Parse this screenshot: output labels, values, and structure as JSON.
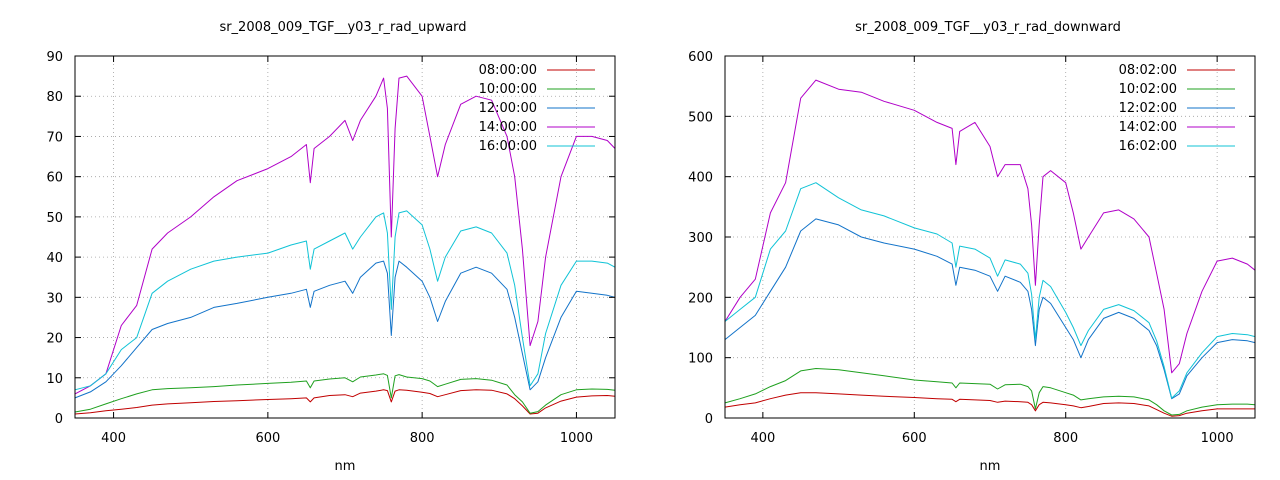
{
  "colors": {
    "s1": "#c00000",
    "s2": "#1fa01f",
    "s3": "#1273c9",
    "s4": "#b000c8",
    "s5": "#10c3d6"
  },
  "chart_data": [
    {
      "type": "line",
      "title": "sr_2008_009_TGF__y03_r_rad_upward",
      "xlabel": "nm",
      "ylabel": "",
      "xlim": [
        350,
        1050
      ],
      "ylim": [
        0,
        90
      ],
      "xticks": [
        400,
        600,
        800,
        1000
      ],
      "yticks": [
        0,
        10,
        20,
        30,
        40,
        50,
        60,
        70,
        80,
        90
      ],
      "grid": true,
      "legend": "top-right",
      "x": [
        350,
        370,
        390,
        410,
        430,
        450,
        470,
        500,
        530,
        560,
        600,
        630,
        650,
        655,
        660,
        680,
        700,
        710,
        720,
        740,
        750,
        755,
        760,
        765,
        770,
        780,
        800,
        810,
        820,
        830,
        850,
        870,
        890,
        910,
        920,
        930,
        940,
        950,
        960,
        980,
        1000,
        1020,
        1040,
        1050
      ],
      "series": [
        {
          "name": "08:00:00",
          "values": [
            1.0,
            1.3,
            1.8,
            2.2,
            2.6,
            3.2,
            3.5,
            3.8,
            4.1,
            4.3,
            4.6,
            4.8,
            5.0,
            4.0,
            5.0,
            5.6,
            5.8,
            5.3,
            6.2,
            6.7,
            7.0,
            6.8,
            4.0,
            6.7,
            7.0,
            6.9,
            6.4,
            6.1,
            5.3,
            5.8,
            6.8,
            7.0,
            6.9,
            6.0,
            4.8,
            3.0,
            1.0,
            1.2,
            2.5,
            4.2,
            5.2,
            5.5,
            5.6,
            5.4
          ]
        },
        {
          "name": "10:00:00",
          "values": [
            1.5,
            2.2,
            3.5,
            4.8,
            6.0,
            7.0,
            7.3,
            7.5,
            7.8,
            8.2,
            8.6,
            8.9,
            9.2,
            7.5,
            9.2,
            9.7,
            10.0,
            9.0,
            10.2,
            10.7,
            11.0,
            10.6,
            5.0,
            10.5,
            10.8,
            10.2,
            9.8,
            9.2,
            7.8,
            8.4,
            9.6,
            9.8,
            9.4,
            8.2,
            5.8,
            4.0,
            1.2,
            1.6,
            3.2,
            5.8,
            7.0,
            7.2,
            7.1,
            6.9
          ]
        },
        {
          "name": "12:00:00",
          "values": [
            5.0,
            6.5,
            9.0,
            13.0,
            17.5,
            22.0,
            23.5,
            25.0,
            27.5,
            28.5,
            30.0,
            31.0,
            32.0,
            27.5,
            31.5,
            33.0,
            34.0,
            31.0,
            35.0,
            38.5,
            39.0,
            36.0,
            20.5,
            35.0,
            39.0,
            37.5,
            34.0,
            30.0,
            24.0,
            29.0,
            36.0,
            37.5,
            36.0,
            32.0,
            25.0,
            16.0,
            7.0,
            9.0,
            15.0,
            25.0,
            31.5,
            31.0,
            30.5,
            30.0
          ]
        },
        {
          "name": "14:00:00",
          "values": [
            6.0,
            8.0,
            11.0,
            23.0,
            28.0,
            42.0,
            46.0,
            50.0,
            55.0,
            59.0,
            62.0,
            65.0,
            68.0,
            58.5,
            67.0,
            70.0,
            74.0,
            69.0,
            74.0,
            80.0,
            84.5,
            77.0,
            45.0,
            72.0,
            84.5,
            85.0,
            80.0,
            70.0,
            60.0,
            68.0,
            78.0,
            80.0,
            79.0,
            70.0,
            60.0,
            42.0,
            18.0,
            24.0,
            40.0,
            60.0,
            70.0,
            70.0,
            69.0,
            67.0
          ]
        },
        {
          "name": "16:00:00",
          "values": [
            7.0,
            8.0,
            11.0,
            17.0,
            20.0,
            31.0,
            34.0,
            37.0,
            39.0,
            40.0,
            41.0,
            43.0,
            44.0,
            37.0,
            42.0,
            44.0,
            46.0,
            42.0,
            45.0,
            50.0,
            51.0,
            46.0,
            27.0,
            45.0,
            51.0,
            51.5,
            48.0,
            42.0,
            34.0,
            40.0,
            46.5,
            47.5,
            46.0,
            41.0,
            33.0,
            20.0,
            8.0,
            11.0,
            21.0,
            33.0,
            39.0,
            39.0,
            38.5,
            37.5
          ]
        }
      ]
    },
    {
      "type": "line",
      "title": "sr_2008_009_TGF__y03_r_rad_downward",
      "xlabel": "nm",
      "ylabel": "",
      "xlim": [
        350,
        1050
      ],
      "ylim": [
        0,
        600
      ],
      "xticks": [
        400,
        600,
        800,
        1000
      ],
      "yticks": [
        0,
        100,
        200,
        300,
        400,
        500,
        600
      ],
      "grid": true,
      "legend": "top-right",
      "x": [
        350,
        370,
        390,
        410,
        430,
        450,
        470,
        500,
        530,
        560,
        600,
        630,
        650,
        655,
        660,
        680,
        700,
        710,
        720,
        740,
        750,
        755,
        760,
        765,
        770,
        780,
        800,
        810,
        820,
        830,
        850,
        870,
        890,
        910,
        920,
        930,
        940,
        950,
        960,
        980,
        1000,
        1020,
        1040,
        1050
      ],
      "series": [
        {
          "name": "08:02:00",
          "values": [
            18.0,
            22.0,
            25.0,
            32.0,
            38.0,
            42.0,
            42.0,
            40.0,
            38.0,
            36.0,
            34.0,
            32.0,
            31.0,
            27.0,
            31.0,
            30.0,
            29.0,
            26.0,
            28.0,
            27.0,
            26.0,
            22.0,
            12.0,
            22.0,
            26.0,
            25.0,
            22.0,
            20.0,
            17.0,
            19.0,
            24.0,
            25.0,
            24.0,
            20.0,
            14.0,
            8.0,
            3.0,
            4.0,
            8.0,
            12.0,
            15.0,
            15.0,
            15.0,
            15.0
          ]
        },
        {
          "name": "10:02:00",
          "values": [
            25.0,
            32.0,
            40.0,
            52.0,
            62.0,
            78.0,
            82.0,
            80.0,
            75.0,
            70.0,
            63.0,
            60.0,
            58.0,
            50.0,
            58.0,
            57.0,
            56.0,
            48.0,
            55.0,
            56.0,
            52.0,
            45.0,
            15.0,
            42.0,
            52.0,
            50.0,
            42.0,
            38.0,
            30.0,
            32.0,
            35.0,
            36.0,
            35.0,
            30.0,
            22.0,
            12.0,
            5.0,
            6.0,
            12.0,
            18.0,
            22.0,
            23.0,
            23.0,
            22.0
          ]
        },
        {
          "name": "12:02:00",
          "values": [
            130.0,
            150.0,
            170.0,
            210.0,
            250.0,
            310.0,
            330.0,
            320.0,
            300.0,
            290.0,
            280.0,
            268.0,
            255.0,
            220.0,
            250.0,
            245.0,
            235.0,
            210.0,
            235.0,
            225.0,
            210.0,
            180.0,
            120.0,
            180.0,
            200.0,
            190.0,
            150.0,
            130.0,
            100.0,
            130.0,
            165.0,
            175.0,
            165.0,
            145.0,
            120.0,
            80.0,
            32.0,
            40.0,
            70.0,
            100.0,
            125.0,
            130.0,
            128.0,
            125.0
          ]
        },
        {
          "name": "14:02:00",
          "values": [
            160.0,
            200.0,
            230.0,
            340.0,
            390.0,
            530.0,
            560.0,
            545.0,
            540.0,
            525.0,
            510.0,
            490.0,
            480.0,
            420.0,
            475.0,
            490.0,
            450.0,
            400.0,
            420.0,
            420.0,
            380.0,
            320.0,
            220.0,
            320.0,
            400.0,
            410.0,
            390.0,
            340.0,
            280.0,
            300.0,
            340.0,
            345.0,
            330.0,
            300.0,
            240.0,
            180.0,
            75.0,
            90.0,
            140.0,
            210.0,
            260.0,
            265.0,
            255.0,
            245.0
          ]
        },
        {
          "name": "16:02:00",
          "values": [
            160.0,
            180.0,
            200.0,
            280.0,
            310.0,
            380.0,
            390.0,
            365.0,
            345.0,
            335.0,
            315.0,
            305.0,
            290.0,
            250.0,
            285.0,
            280.0,
            265.0,
            235.0,
            262.0,
            255.0,
            240.0,
            205.0,
            130.0,
            200.0,
            228.0,
            218.0,
            175.0,
            150.0,
            120.0,
            145.0,
            180.0,
            188.0,
            178.0,
            158.0,
            128.0,
            85.0,
            33.0,
            45.0,
            75.0,
            108.0,
            135.0,
            140.0,
            138.0,
            135.0
          ]
        }
      ]
    }
  ]
}
